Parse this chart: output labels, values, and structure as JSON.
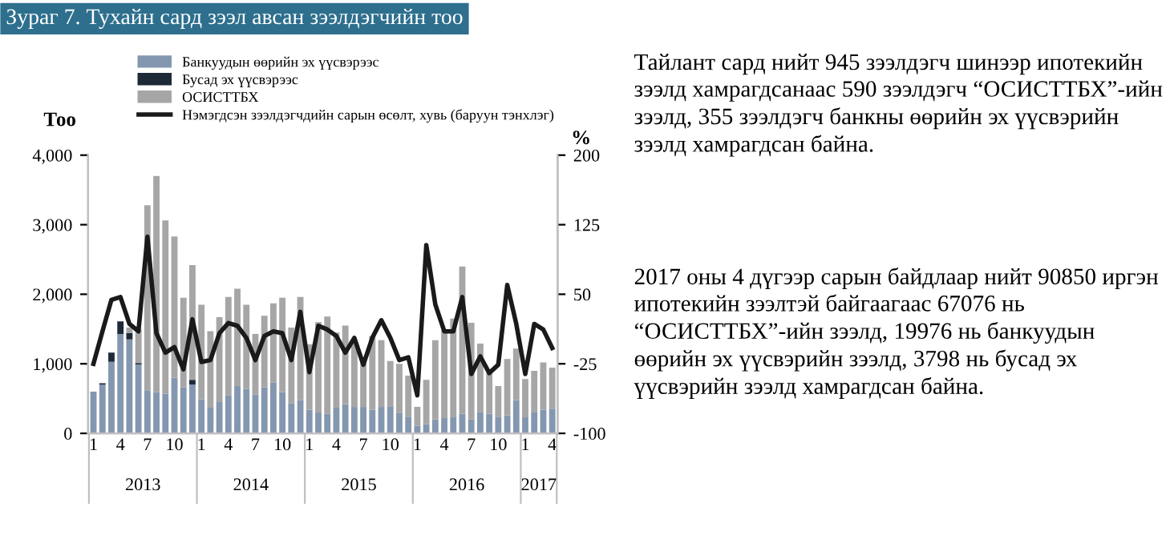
{
  "chart_data": {
    "type": "bar",
    "stacked": true,
    "title": "Зураг 7. Тухайн сард зээл авсан зээлдэгчийн тоо",
    "ylabel": "Тоо",
    "y2label": "%",
    "categories": [
      "1",
      null,
      null,
      "4",
      null,
      null,
      "7",
      null,
      null,
      "10",
      null,
      null,
      "1",
      null,
      null,
      "4",
      null,
      null,
      "7",
      null,
      null,
      "10",
      null,
      null,
      "1",
      null,
      null,
      "4",
      null,
      null,
      "7",
      null,
      null,
      "10",
      null,
      null,
      "1",
      null,
      null,
      "4",
      null,
      null,
      "7",
      null,
      null,
      "10",
      null,
      null,
      "1",
      null,
      null,
      "4"
    ],
    "series": [
      {
        "name": "Банкуудын өөрийн эх үүсвэрээс",
        "color": "#8497b0",
        "values": [
          600,
          700,
          1030,
          1430,
          1350,
          990,
          620,
          590,
          570,
          800,
          660,
          700,
          490,
          370,
          450,
          550,
          680,
          640,
          560,
          660,
          730,
          590,
          430,
          480,
          340,
          300,
          280,
          370,
          420,
          380,
          380,
          340,
          380,
          390,
          290,
          240,
          110,
          130,
          200,
          220,
          230,
          280,
          200,
          310,
          280,
          240,
          260,
          480,
          230,
          300,
          340,
          355
        ]
      },
      {
        "name": "Бусад эх үүсвэрээс",
        "color": "#1f2a38",
        "values": [
          0,
          20,
          130,
          180,
          90,
          20,
          0,
          0,
          0,
          0,
          0,
          70,
          0,
          0,
          0,
          0,
          0,
          0,
          0,
          0,
          0,
          0,
          0,
          0,
          0,
          0,
          0,
          0,
          0,
          0,
          0,
          0,
          0,
          0,
          0,
          0,
          0,
          0,
          0,
          0,
          0,
          0,
          0,
          0,
          0,
          0,
          0,
          0,
          0,
          0,
          0,
          0
        ]
      },
      {
        "name": "ОСИСТТБХ",
        "color": "#a6a6a6",
        "values": [
          0,
          0,
          0,
          0,
          80,
          490,
          2660,
          3110,
          2490,
          2030,
          1290,
          1650,
          1360,
          1100,
          1220,
          1410,
          1400,
          1210,
          870,
          1030,
          1140,
          1360,
          1090,
          1480,
          940,
          1300,
          1400,
          1080,
          1130,
          920,
          720,
          1060,
          960,
          650,
          710,
          590,
          270,
          640,
          1140,
          1260,
          1420,
          2120,
          1390,
          980,
          590,
          440,
          810,
          740,
          550,
          600,
          680,
          590
        ]
      },
      {
        "name": "Нэмэгдсэн зээлдэгчдийн сарын өсөлт, хувь (баруун тэнхлэг)",
        "type": "line",
        "axis": "y2",
        "color": "#1a1a1a",
        "values": [
          -25,
          10,
          44,
          47,
          18,
          10,
          112,
          8,
          -13,
          -7,
          -31,
          23,
          -23,
          -21,
          8,
          19,
          16,
          3,
          -21,
          5,
          10,
          8,
          -21,
          31,
          -34,
          16,
          12,
          5,
          -13,
          3,
          -26,
          3,
          22,
          3,
          -21,
          -18,
          -59,
          103,
          39,
          10,
          10,
          47,
          -36,
          -17,
          -35,
          -26,
          60,
          18,
          -36,
          18,
          12,
          -8
        ]
      }
    ],
    "ylim": [
      0,
      4000
    ],
    "yticks": [
      0,
      {
        "value": 1000,
        "label": "1,000"
      },
      {
        "value": 2000,
        "label": "2,000"
      },
      {
        "value": 3000,
        "label": "3,000"
      },
      {
        "value": 4000,
        "label": "4,000"
      }
    ],
    "y2lim": [
      -100,
      200
    ],
    "y2ticks": [
      -100,
      -25,
      50,
      125,
      200
    ],
    "legend": "top",
    "grid": false,
    "annotations": [
      "2013",
      "2014",
      "2015",
      "2016",
      "2017",
      "Тайлант сард нийт 945 зээлдэгч шинээр ипотекийн зээлд хамрагдсанаас 590 зээлдэгч “ОСИСТТБХ”-ийн зээлд, 355 зээлдэгч банкны өөрийн эх үүсвэрийн зээлд хамрагдсан байна.",
      "2017 оны 4 дүгээр сарын байдлаар нийт 90850 иргэн ипотекийн зээлтэй байгаагаас 67076 нь “ОСИСТТБХ”-ийн зээлд, 19976 нь банкуудын өөрийн эх үүсвэрийн зээлд, 3798 нь бусад эх үүсвэрийн зээлд хамрагдсан байна."
    ]
  }
}
